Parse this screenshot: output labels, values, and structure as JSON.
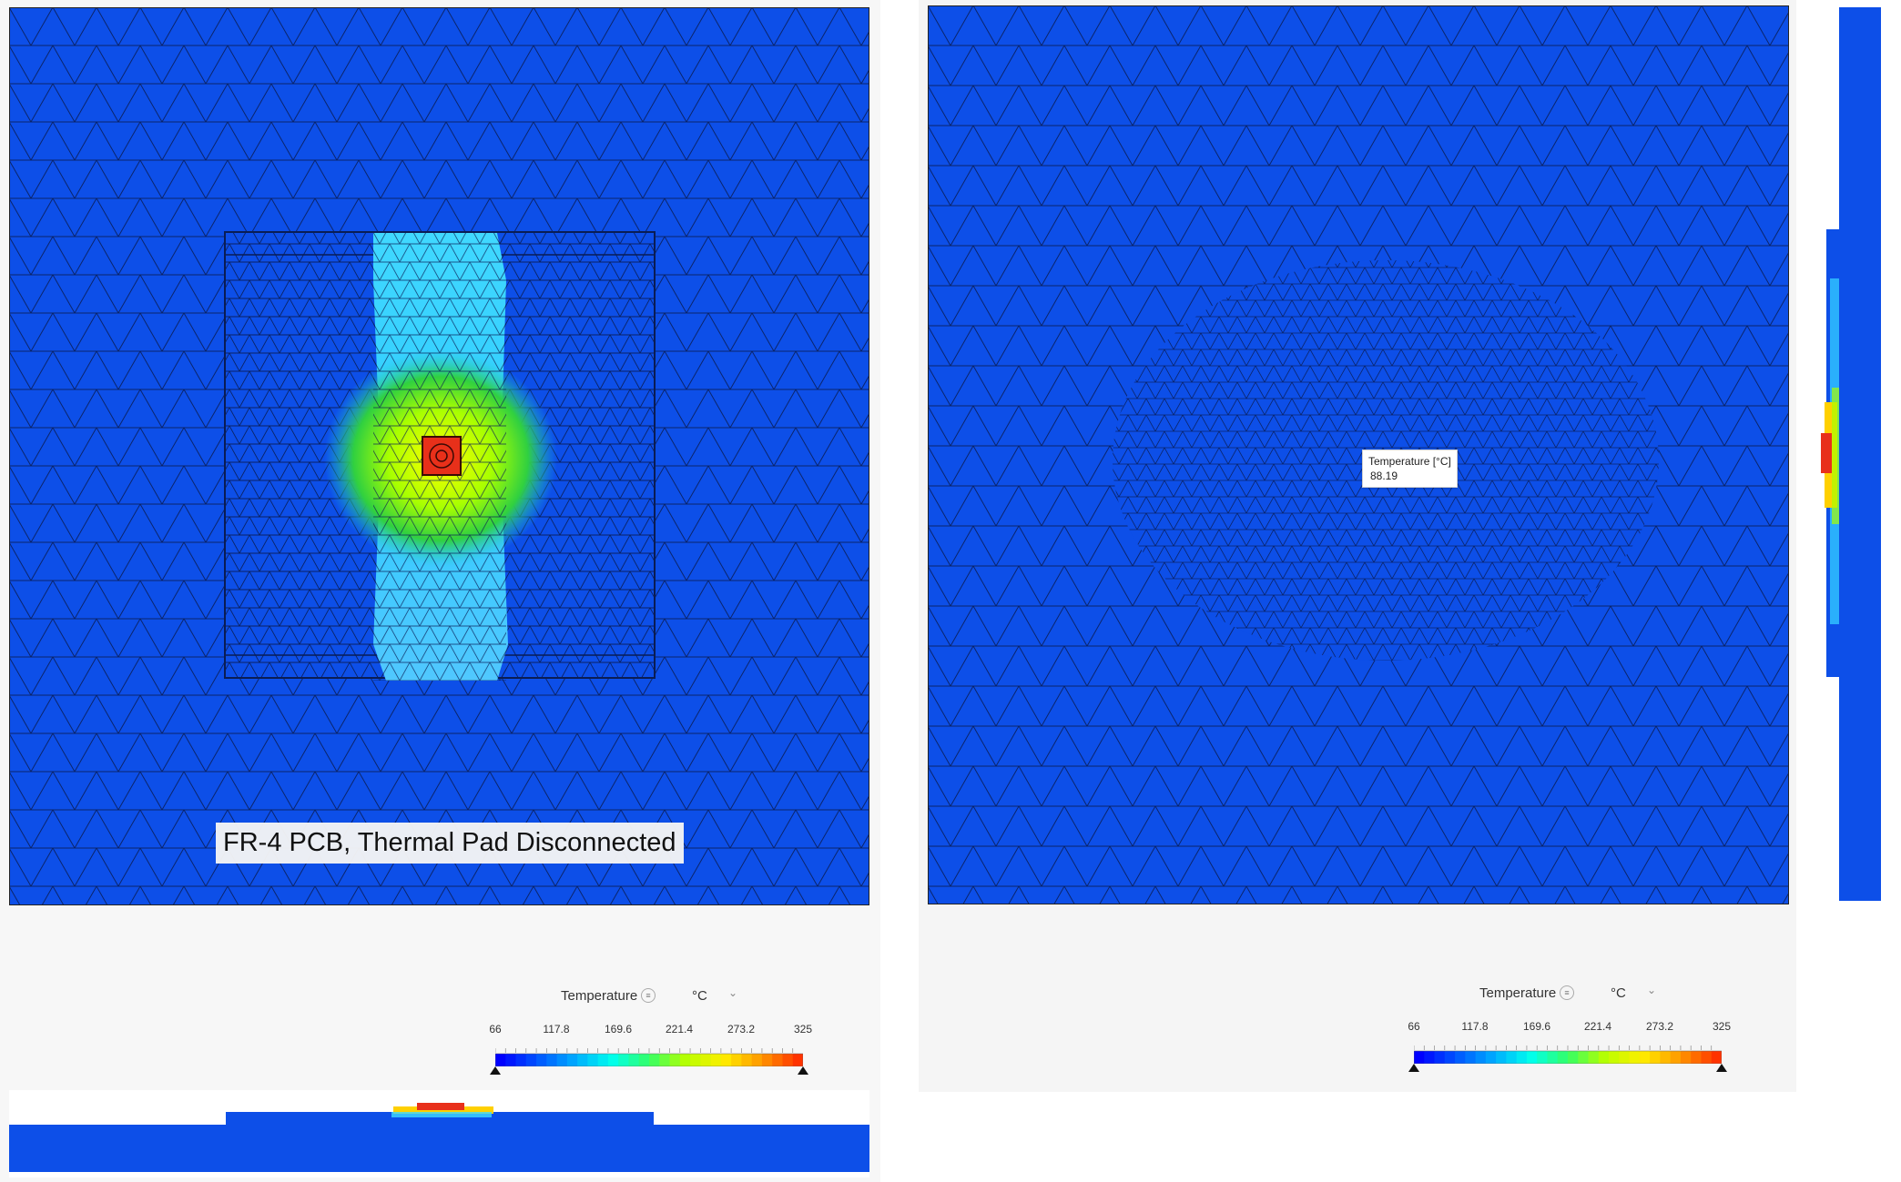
{
  "left_view": {
    "caption": "FR-4 PCB, Thermal Pad Disconnected"
  },
  "right_view": {
    "probe_label": "Temperature [°C]",
    "probe_value": "88.19"
  },
  "legend_left": {
    "quantity": "Temperature",
    "info_icon": "info-icon",
    "unit": "°C",
    "ticks": [
      "66",
      "117.8",
      "169.6",
      "221.4",
      "273.2",
      "325"
    ],
    "min": 66,
    "max": 325
  },
  "legend_right": {
    "quantity": "Temperature",
    "info_icon": "info-icon",
    "unit": "°C",
    "ticks": [
      "66",
      "117.8",
      "169.6",
      "221.4",
      "273.2",
      "325"
    ],
    "min": 66,
    "max": 325
  },
  "colors": {
    "background_mesh": "#0d4fe8",
    "hot": "#e8301a",
    "colormap": [
      "#0000ff",
      "#0055ff",
      "#00aaff",
      "#00ffee",
      "#33ff66",
      "#b8ff00",
      "#ffee00",
      "#ff9900",
      "#ff3300"
    ]
  }
}
